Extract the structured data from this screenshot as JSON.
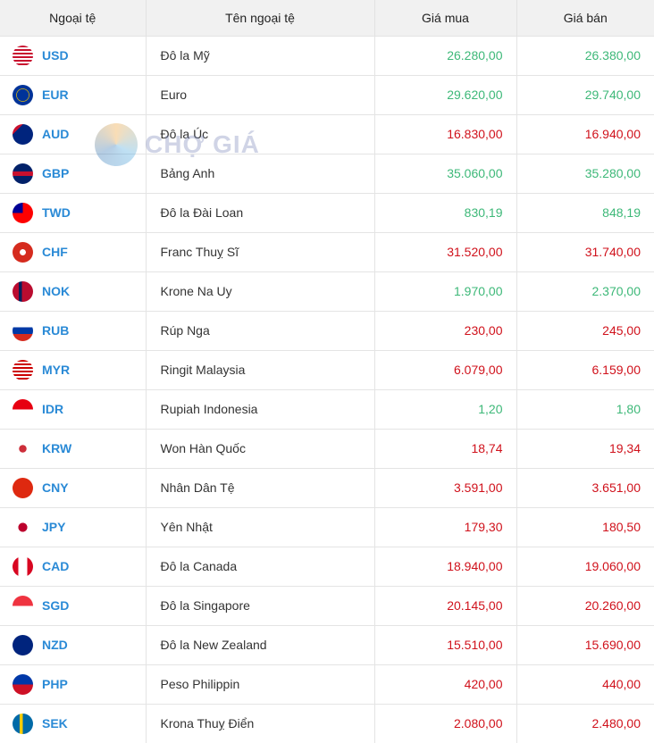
{
  "header": {
    "code": "Ngoại tệ",
    "name": "Tên ngoại tệ",
    "buy": "Giá mua",
    "sell": "Giá bán"
  },
  "watermark": "CHỢ GIÁ",
  "colors": {
    "up": "#3db878",
    "down": "#d0111b",
    "code": "#2a8ad6"
  },
  "rows": [
    {
      "code": "USD",
      "name": "Đô la Mỹ",
      "buy": "26.280,00",
      "sell": "26.380,00",
      "trend": "up"
    },
    {
      "code": "EUR",
      "name": "Euro",
      "buy": "29.620,00",
      "sell": "29.740,00",
      "trend": "up"
    },
    {
      "code": "AUD",
      "name": "Đô la Úc",
      "buy": "16.830,00",
      "sell": "16.940,00",
      "trend": "down"
    },
    {
      "code": "GBP",
      "name": "Bảng Anh",
      "buy": "35.060,00",
      "sell": "35.280,00",
      "trend": "up"
    },
    {
      "code": "TWD",
      "name": "Đô la Đài Loan",
      "buy": "830,19",
      "sell": "848,19",
      "trend": "up"
    },
    {
      "code": "CHF",
      "name": "Franc Thuỵ Sĩ",
      "buy": "31.520,00",
      "sell": "31.740,00",
      "trend": "down"
    },
    {
      "code": "NOK",
      "name": "Krone Na Uy",
      "buy": "1.970,00",
      "sell": "2.370,00",
      "trend": "up"
    },
    {
      "code": "RUB",
      "name": "Rúp Nga",
      "buy": "230,00",
      "sell": "245,00",
      "trend": "down"
    },
    {
      "code": "MYR",
      "name": "Ringit Malaysia",
      "buy": "6.079,00",
      "sell": "6.159,00",
      "trend": "down"
    },
    {
      "code": "IDR",
      "name": "Rupiah Indonesia",
      "buy": "1,20",
      "sell": "1,80",
      "trend": "up"
    },
    {
      "code": "KRW",
      "name": "Won Hàn Quốc",
      "buy": "18,74",
      "sell": "19,34",
      "trend": "down"
    },
    {
      "code": "CNY",
      "name": "Nhân Dân Tệ",
      "buy": "3.591,00",
      "sell": "3.651,00",
      "trend": "down"
    },
    {
      "code": "JPY",
      "name": "Yên Nhật",
      "buy": "179,30",
      "sell": "180,50",
      "trend": "down"
    },
    {
      "code": "CAD",
      "name": "Đô la Canada",
      "buy": "18.940,00",
      "sell": "19.060,00",
      "trend": "down"
    },
    {
      "code": "SGD",
      "name": "Đô la Singapore",
      "buy": "20.145,00",
      "sell": "20.260,00",
      "trend": "down"
    },
    {
      "code": "NZD",
      "name": "Đô la New Zealand",
      "buy": "15.510,00",
      "sell": "15.690,00",
      "trend": "down"
    },
    {
      "code": "PHP",
      "name": "Peso Philippin",
      "buy": "420,00",
      "sell": "440,00",
      "trend": "down"
    },
    {
      "code": "SEK",
      "name": "Krona Thuỵ Điển",
      "buy": "2.080,00",
      "sell": "2.480,00",
      "trend": "down"
    }
  ]
}
